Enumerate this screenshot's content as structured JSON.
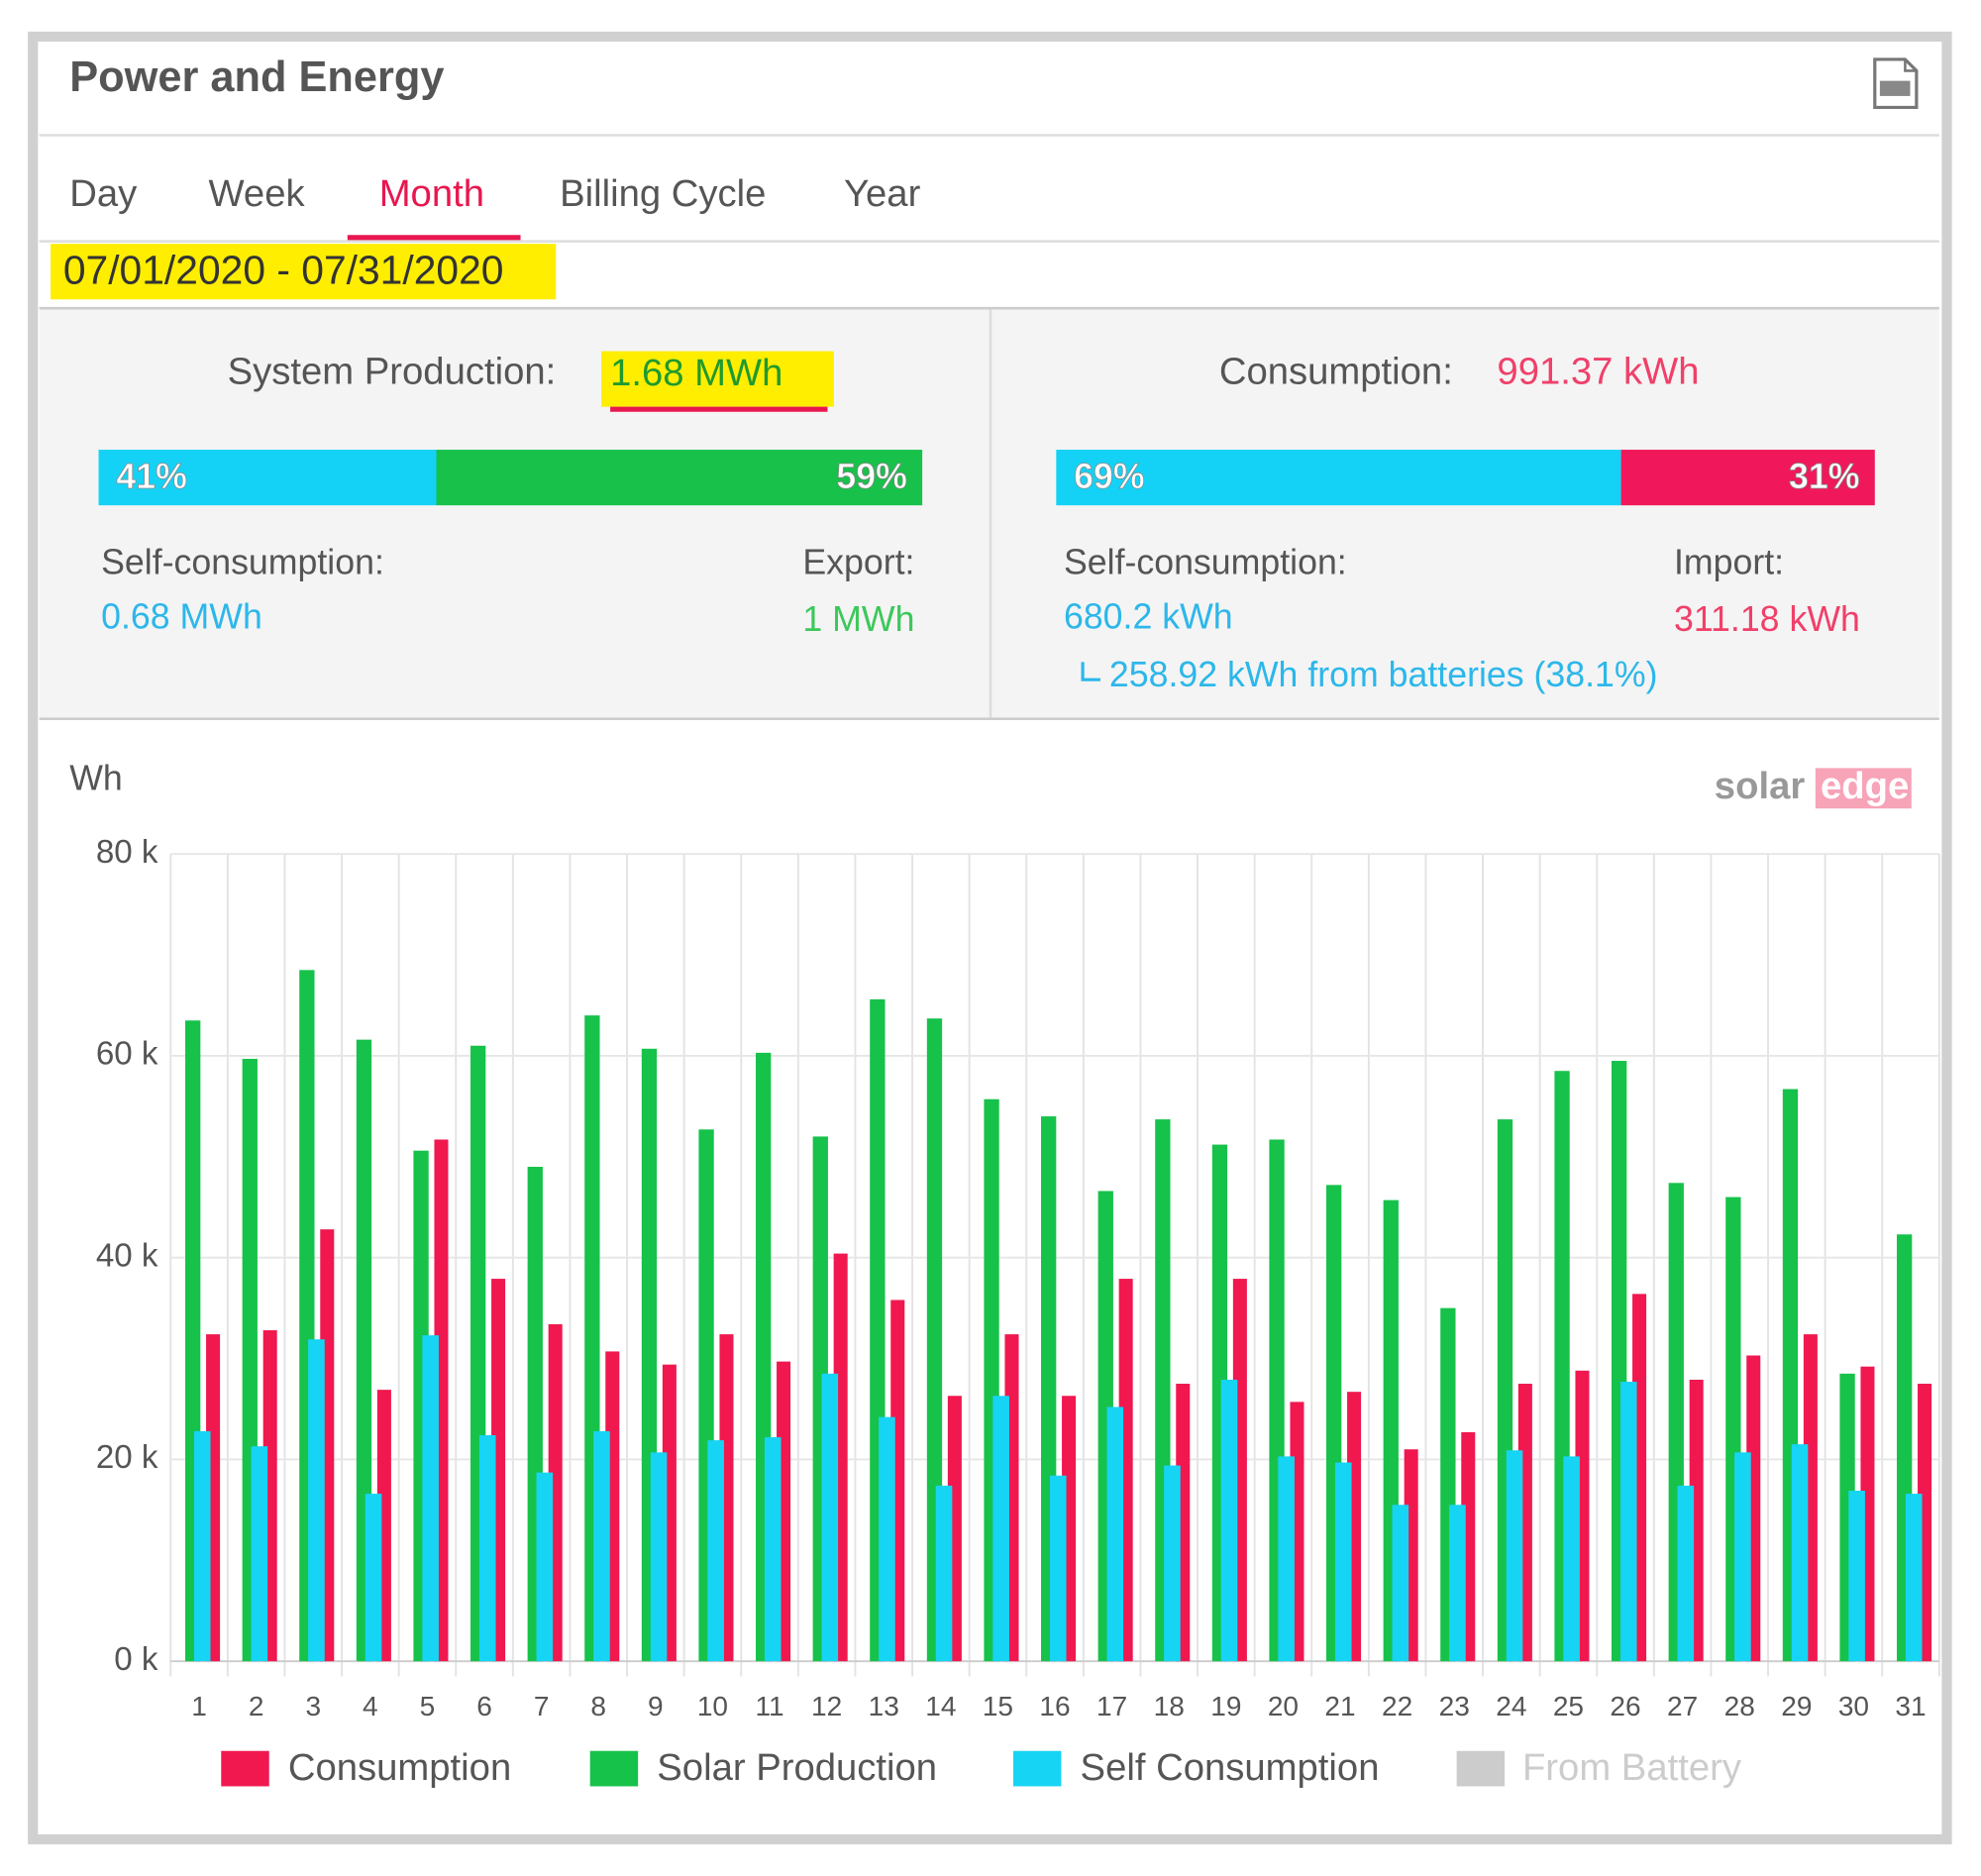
{
  "header": {
    "title": "Power and Energy"
  },
  "tabs": [
    "Day",
    "Week",
    "Month",
    "Billing Cycle",
    "Year"
  ],
  "active_tab": 2,
  "date_range": "07/01/2020 - 07/31/2020",
  "production": {
    "label": "System Production:",
    "value": "1.68 MWh",
    "split": {
      "values": [
        41,
        59
      ],
      "value_labels": [
        "41%",
        "59%"
      ],
      "colors": [
        "#14d2f5",
        "#17c14a"
      ]
    },
    "self_consumption_label": "Self-consumption:",
    "self_consumption_value": "0.68 MWh",
    "export_label": "Export:",
    "export_value": "1 MWh"
  },
  "consumption": {
    "label": "Consumption:",
    "value": "991.37 kWh",
    "split": {
      "values": [
        69,
        31
      ],
      "value_labels": [
        "69%",
        "31%"
      ],
      "colors": [
        "#14d2f5",
        "#f0185a"
      ]
    },
    "self_consumption_label": "Self-consumption:",
    "self_consumption_value": "680.2 kWh",
    "import_label": "Import:",
    "import_value": "311.18 kWh",
    "battery_note": "258.92 kWh from batteries (38.1%)"
  },
  "brand": [
    "solar",
    "edge"
  ],
  "chart_data": {
    "type": "bar",
    "y_label": "Wh",
    "categories": [
      "1",
      "2",
      "3",
      "4",
      "5",
      "6",
      "7",
      "8",
      "9",
      "10",
      "11",
      "12",
      "13",
      "14",
      "15",
      "16",
      "17",
      "18",
      "19",
      "20",
      "21",
      "22",
      "23",
      "24",
      "25",
      "26",
      "27",
      "28",
      "29",
      "30",
      "31"
    ],
    "series": [
      {
        "name": "Consumption",
        "color": "#f0184f",
        "values": [
          32400,
          32800,
          42800,
          26900,
          51700,
          37900,
          33400,
          30700,
          29400,
          32400,
          29700,
          40400,
          35800,
          26300,
          32400,
          26300,
          37900,
          27500,
          37900,
          25700,
          26700,
          21000,
          22700,
          27500,
          28800,
          36400,
          27900,
          30300,
          32400,
          29200,
          27500
        ]
      },
      {
        "name": "Solar Production",
        "color": "#16c24a",
        "values": [
          63500,
          59700,
          68500,
          61600,
          50600,
          61000,
          49000,
          64000,
          60700,
          52700,
          60300,
          52000,
          65600,
          63700,
          55700,
          54000,
          46600,
          53700,
          51200,
          51700,
          47200,
          45700,
          35000,
          53700,
          58500,
          59500,
          47400,
          46000,
          56700,
          28500,
          42300
        ]
      },
      {
        "name": "Self Consumption",
        "color": "#16d4f4",
        "values": [
          22800,
          21300,
          31900,
          16600,
          32300,
          22400,
          18700,
          22800,
          20700,
          21900,
          22200,
          28500,
          24200,
          17400,
          26300,
          18400,
          25200,
          19400,
          27900,
          20300,
          19700,
          15500,
          15500,
          20900,
          20300,
          27700,
          17400,
          20700,
          21500,
          16900,
          16600
        ]
      }
    ],
    "hidden_series": [
      {
        "name": "From Battery",
        "color": "#cccccc"
      }
    ],
    "ylim": [
      0,
      80000
    ],
    "yticks": [
      {
        "value": 0,
        "label": "0 k"
      },
      {
        "value": 20000,
        "label": "20 k"
      },
      {
        "value": 40000,
        "label": "40 k"
      },
      {
        "value": 60000,
        "label": "60 k"
      },
      {
        "value": 80000,
        "label": "80 k"
      }
    ],
    "grid": true
  }
}
